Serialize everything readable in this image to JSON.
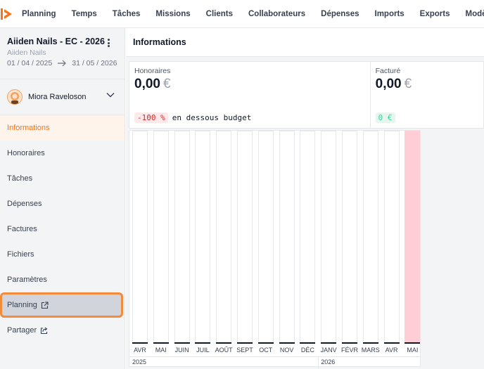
{
  "nav": {
    "items": [
      "Planning",
      "Temps",
      "Tâches",
      "Missions",
      "Clients",
      "Collaborateurs",
      "Dépenses",
      "Imports",
      "Exports",
      "Modèles"
    ]
  },
  "project": {
    "title": "Aiiden Nails - EC - 2026",
    "client": "Aiiden Nails",
    "start": "01 / 04 / 2025",
    "end": "31 / 05 / 2026"
  },
  "user": {
    "name": "Miora Raveloson"
  },
  "sidebar": {
    "items": [
      {
        "label": "Informations",
        "state": "active"
      },
      {
        "label": "Honoraires"
      },
      {
        "label": "Tâches"
      },
      {
        "label": "Dépenses"
      },
      {
        "label": "Factures"
      },
      {
        "label": "Fichiers"
      },
      {
        "label": "Paramètres"
      },
      {
        "label": "Planning",
        "state": "highlighted",
        "icon": "external-link-icon"
      },
      {
        "label": "Partager",
        "icon": "share-icon"
      }
    ]
  },
  "main": {
    "title": "Informations",
    "cards": {
      "honoraires": {
        "label": "Honoraires",
        "value": "0,00",
        "currency": "€",
        "badge": "-100 %",
        "note": "en dessous budget"
      },
      "facture": {
        "label": "Facturé",
        "value": "0,00",
        "currency": "€",
        "badge": "0 €"
      }
    }
  },
  "chart_data": {
    "type": "bar",
    "categories": [
      "AVR",
      "MAI",
      "JUIN",
      "JUIL",
      "AOÛT",
      "SEPT",
      "OCT",
      "NOV",
      "DÉC",
      "JANV",
      "FÉVR",
      "MARS",
      "AVR",
      "MAI"
    ],
    "years": [
      {
        "label": "2025"
      },
      {
        "label": "2026"
      }
    ],
    "current_index": 13
  },
  "colors": {
    "accent": "#f97316",
    "highlight_outline": "#f28c3b",
    "current_month": "#fecdd6",
    "negative": "#dc2626",
    "positive": "#34d399"
  }
}
